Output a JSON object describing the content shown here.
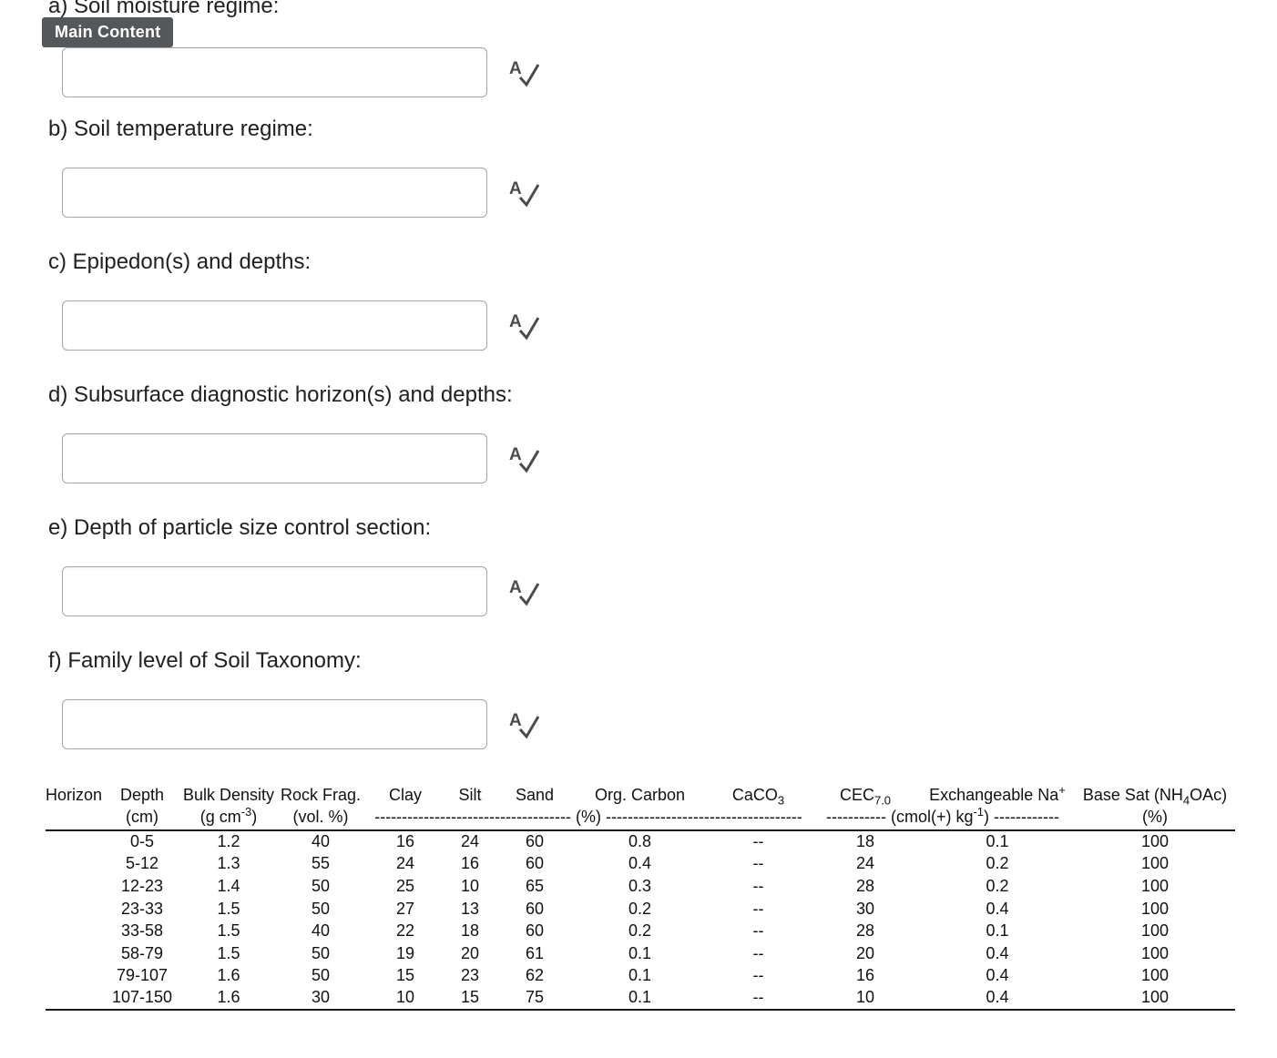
{
  "colors": {
    "badge_bg": "#54585a",
    "badge_text": "#ffffff",
    "icon_color": "#494c4e",
    "input_border": "#a6a6a6"
  },
  "skip_badge": {
    "label": "Main Content"
  },
  "questions": [
    {
      "label": "a) Soil moisture regime:"
    },
    {
      "label": "b) Soil temperature regime:"
    },
    {
      "label": "c) Epipedon(s) and depths:"
    },
    {
      "label": "d) Subsurface diagnostic horizon(s) and depths:"
    },
    {
      "label": "e) Depth of particle size control section:"
    },
    {
      "label": "f) Family level of Soil Taxonomy:"
    }
  ],
  "answers": [
    {
      "value": "",
      "placeholder": ""
    },
    {
      "value": "",
      "placeholder": ""
    },
    {
      "value": "",
      "placeholder": ""
    },
    {
      "value": "",
      "placeholder": ""
    },
    {
      "value": "",
      "placeholder": ""
    },
    {
      "value": "",
      "placeholder": ""
    }
  ],
  "spellcheck": {
    "letter": "A"
  },
  "table": {
    "headers": [
      {
        "pre": "Horizon"
      },
      {
        "pre": "Depth"
      },
      {
        "pre": "Bulk Density"
      },
      {
        "pre": "Rock Frag."
      },
      {
        "pre": "Clay"
      },
      {
        "pre": "Silt"
      },
      {
        "pre": "Sand"
      },
      {
        "pre": "Org. Carbon"
      },
      {
        "pre": "CaCO",
        "sub": "3"
      },
      {
        "pre": "CEC",
        "sub": "7.0"
      },
      {
        "pre": "Exchangeable Na",
        "sup": "+"
      },
      {
        "pre": "Base Sat (NH",
        "sub": "4",
        "post": "OAc)"
      }
    ],
    "units": [
      {
        "pre": ""
      },
      {
        "pre": "(cm)"
      },
      {
        "pre": "(g cm",
        "sup": "-3",
        "post": ")"
      },
      {
        "pre": "(vol. %)"
      },
      {
        "pre": "------------------------------------ (%) ------------------------------------"
      },
      {
        "pre": "----------- (cmol(+) kg",
        "sup": "-1",
        "post": ") ------------"
      },
      {
        "pre": "(%)"
      }
    ],
    "rows": [
      [
        "",
        "0-5",
        "1.2",
        "40",
        "16",
        "24",
        "60",
        "0.8",
        "--",
        "18",
        "0.1",
        "100"
      ],
      [
        "",
        "5-12",
        "1.3",
        "55",
        "24",
        "16",
        "60",
        "0.4",
        "--",
        "24",
        "0.2",
        "100"
      ],
      [
        "",
        "12-23",
        "1.4",
        "50",
        "25",
        "10",
        "65",
        "0.3",
        "--",
        "28",
        "0.2",
        "100"
      ],
      [
        "",
        "23-33",
        "1.5",
        "50",
        "27",
        "13",
        "60",
        "0.2",
        "--",
        "30",
        "0.4",
        "100"
      ],
      [
        "",
        "33-58",
        "1.5",
        "40",
        "22",
        "18",
        "60",
        "0.2",
        "--",
        "28",
        "0.1",
        "100"
      ],
      [
        "",
        "58-79",
        "1.5",
        "50",
        "19",
        "20",
        "61",
        "0.1",
        "--",
        "20",
        "0.4",
        "100"
      ],
      [
        "",
        "79-107",
        "1.6",
        "50",
        "15",
        "23",
        "62",
        "0.1",
        "--",
        "16",
        "0.4",
        "100"
      ],
      [
        "",
        "107-150",
        "1.6",
        "30",
        "10",
        "15",
        "75",
        "0.1",
        "--",
        "10",
        "0.4",
        "100"
      ]
    ]
  }
}
